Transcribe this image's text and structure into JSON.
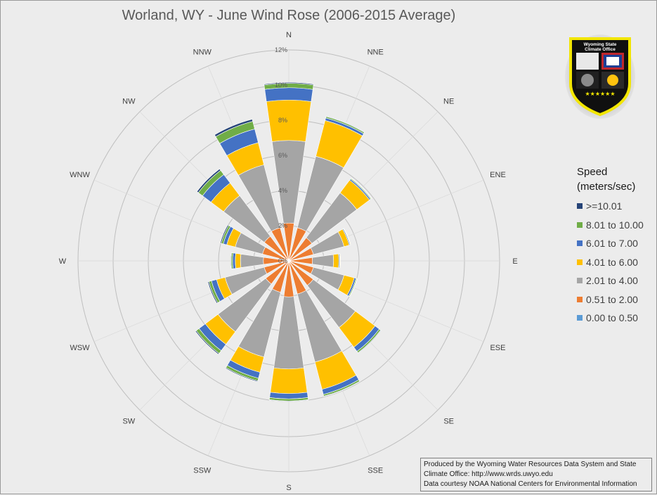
{
  "chart_data": {
    "type": "wind-rose",
    "title": "Worland, WY - June Wind Rose (2006-2015 Average)",
    "directions": [
      "N",
      "NNE",
      "NE",
      "ENE",
      "E",
      "ESE",
      "SE",
      "SSE",
      "S",
      "SSW",
      "SW",
      "WSW",
      "W",
      "WNW",
      "NW",
      "NNW"
    ],
    "radial_ticks": [
      "0%",
      "2%",
      "4%",
      "6%",
      "8%",
      "10%",
      "12%"
    ],
    "radial_max": 12,
    "radial_unit": "percent",
    "legend_title_lines": [
      "Speed",
      "(meters/sec)"
    ],
    "series": [
      {
        "name": "0.00 to 0.50",
        "color": "#5b9bd5",
        "values": [
          0.05,
          0.05,
          0.05,
          0.05,
          0.05,
          0.05,
          0.05,
          0.05,
          0.05,
          0.05,
          0.05,
          0.05,
          0.05,
          0.05,
          0.05,
          0.05
        ]
      },
      {
        "name": "0.51 to 2.00",
        "color": "#ed7d31",
        "values": [
          2.1,
          1.9,
          1.6,
          1.4,
          1.3,
          1.4,
          1.7,
          1.9,
          2.0,
          1.8,
          1.6,
          1.4,
          1.4,
          1.5,
          1.7,
          1.9
        ]
      },
      {
        "name": "2.01 to 4.00",
        "color": "#a5a5a5",
        "values": [
          4.7,
          4.2,
          3.2,
          1.8,
          1.2,
          1.8,
          3.0,
          4.0,
          4.1,
          3.8,
          3.4,
          2.3,
          1.3,
          1.6,
          2.9,
          3.7
        ]
      },
      {
        "name": "4.01 to 6.00",
        "color": "#ffc000",
        "values": [
          2.3,
          2.1,
          0.9,
          0.3,
          0.3,
          0.6,
          1.4,
          1.6,
          1.4,
          0.9,
          0.9,
          0.5,
          0.3,
          0.5,
          0.9,
          1.3
        ]
      },
      {
        "name": "6.01 to 7.00",
        "color": "#4472c4",
        "values": [
          0.7,
          0.15,
          0.08,
          0.05,
          0.05,
          0.1,
          0.3,
          0.3,
          0.3,
          0.35,
          0.45,
          0.3,
          0.15,
          0.2,
          0.6,
          0.8
        ]
      },
      {
        "name": "8.01 to 10.00",
        "color": "#70ad47",
        "values": [
          0.25,
          0.08,
          0.05,
          0.03,
          0.03,
          0.05,
          0.1,
          0.1,
          0.12,
          0.15,
          0.2,
          0.15,
          0.08,
          0.12,
          0.3,
          0.45
        ]
      },
      {
        "name": ">=10.01",
        "color": "#264478",
        "values": [
          0.05,
          0.03,
          0.02,
          0.01,
          0.01,
          0.02,
          0.03,
          0.03,
          0.03,
          0.05,
          0.06,
          0.06,
          0.03,
          0.06,
          0.1,
          0.12
        ]
      }
    ]
  },
  "legend_order": [
    ">=10.01",
    "8.01 to 10.00",
    "6.01 to 7.00",
    "4.01 to 6.00",
    "2.01 to 4.00",
    "0.51 to 2.00",
    "0.00 to 0.50"
  ],
  "credits": {
    "line1": "Produced by the Wyoming Water Resources Data System and State",
    "line2": "Climate Office: http://www.wrds.uwyo.edu",
    "line3": "Data courtesy NOAA National Centers for Environmental Information"
  },
  "logo": {
    "text_line1": "Wyoming State",
    "text_line2": "Climate Office",
    "stars": "★★★★★★"
  }
}
